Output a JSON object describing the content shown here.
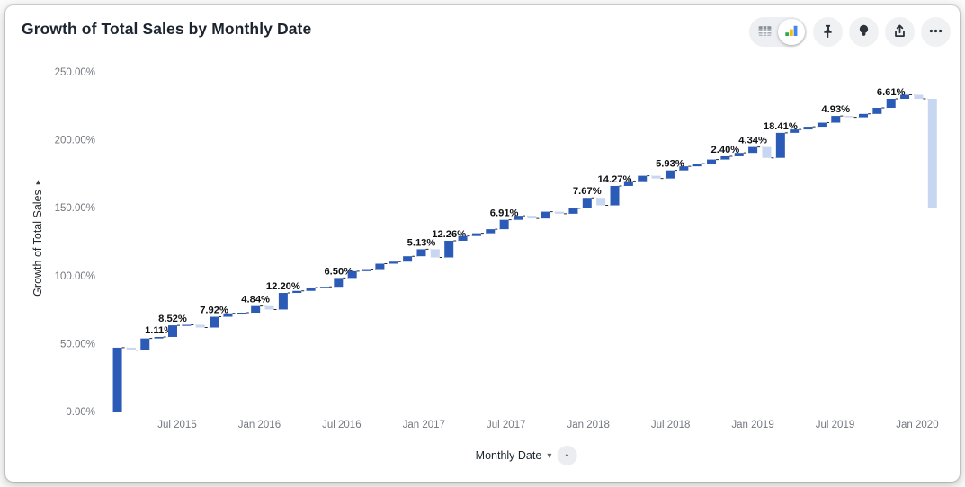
{
  "header": {
    "title": "Growth of Total Sales by Monthly Date"
  },
  "toolbar": {
    "view_toggle": {
      "options": [
        {
          "name": "table-view",
          "icon": "table-grid-icon",
          "selected": false
        },
        {
          "name": "chart-view",
          "icon": "mini-bar-chart-icon",
          "selected": true
        }
      ]
    },
    "buttons": [
      {
        "name": "pin",
        "icon": "pushpin-icon"
      },
      {
        "name": "insights",
        "icon": "lightbulb-icon"
      },
      {
        "name": "export",
        "icon": "share-up-arrow-icon"
      },
      {
        "name": "more",
        "icon": "ellipsis-icon"
      }
    ]
  },
  "chart_data": {
    "type": "waterfall",
    "title": "Growth of Total Sales by Monthly Date",
    "value_format": "0.00%",
    "grid": false,
    "colors": {
      "increase": "#2b5bb7",
      "decrease": "#c7d7f1",
      "connector": "#26282b",
      "tick_text": "#74787e",
      "label_text": "#0e1013"
    },
    "y_axis": {
      "label": "Growth of Total Sales",
      "sort_icon": "▸",
      "range": [
        0,
        250
      ],
      "ticks": [
        {
          "value": 0,
          "label": "0.00%"
        },
        {
          "value": 50,
          "label": "50.00%"
        },
        {
          "value": 100,
          "label": "100.00%"
        },
        {
          "value": 150,
          "label": "150.00%"
        },
        {
          "value": 200,
          "label": "200.00%"
        },
        {
          "value": 250,
          "label": "250.00%"
        }
      ]
    },
    "x_axis": {
      "label": "Monthly Date",
      "dropdown_icon": "▾",
      "sort_icon": "↑",
      "ticks": [
        "Jul 2015",
        "Jan 2016",
        "Jul 2016",
        "Jan 2017",
        "Jul 2017",
        "Jan 2018",
        "Jul 2018",
        "Jan 2019",
        "Jul 2019",
        "Jan 2020"
      ]
    },
    "bars": [
      {
        "month": "Mar 2015",
        "delta": 47.0
      },
      {
        "month": "Apr 2015",
        "delta": -1.8
      },
      {
        "month": "May 2015",
        "delta": 8.6
      },
      {
        "month": "Jun 2015",
        "delta": 1.11,
        "label": "1.11%"
      },
      {
        "month": "Jul 2015",
        "delta": 8.52,
        "label": "8.52%"
      },
      {
        "month": "Aug 2015",
        "delta": 0.4
      },
      {
        "month": "Sep 2015",
        "delta": -2.0
      },
      {
        "month": "Oct 2015",
        "delta": 7.92,
        "label": "7.92%"
      },
      {
        "month": "Nov 2015",
        "delta": 2.5
      },
      {
        "month": "Dec 2015",
        "delta": 0.5
      },
      {
        "month": "Jan 2016",
        "delta": 4.84,
        "label": "4.84%"
      },
      {
        "month": "Feb 2016",
        "delta": -2.5
      },
      {
        "month": "Mar 2016",
        "delta": 12.2,
        "label": "12.20%"
      },
      {
        "month": "Apr 2016",
        "delta": 1.5
      },
      {
        "month": "May 2016",
        "delta": 2.5
      },
      {
        "month": "Jun 2016",
        "delta": 0.5
      },
      {
        "month": "Jul 2016",
        "delta": 6.5,
        "label": "6.50%"
      },
      {
        "month": "Aug 2016",
        "delta": 5.0
      },
      {
        "month": "Sep 2016",
        "delta": 1.5
      },
      {
        "month": "Oct 2016",
        "delta": 4.0
      },
      {
        "month": "Nov 2016",
        "delta": 1.5
      },
      {
        "month": "Dec 2016",
        "delta": 4.0
      },
      {
        "month": "Jan 2017",
        "delta": 5.13,
        "label": "5.13%"
      },
      {
        "month": "Feb 2017",
        "delta": -6.0
      },
      {
        "month": "Mar 2017",
        "delta": 12.26,
        "label": "12.26%"
      },
      {
        "month": "Apr 2017",
        "delta": 3.5
      },
      {
        "month": "May 2017",
        "delta": 2.0
      },
      {
        "month": "Jun 2017",
        "delta": 3.0
      },
      {
        "month": "Jul 2017",
        "delta": 6.91,
        "label": "6.91%"
      },
      {
        "month": "Aug 2017",
        "delta": 3.0
      },
      {
        "month": "Sep 2017",
        "delta": -2.0
      },
      {
        "month": "Oct 2017",
        "delta": 5.0
      },
      {
        "month": "Nov 2017",
        "delta": -1.5
      },
      {
        "month": "Dec 2017",
        "delta": 4.0
      },
      {
        "month": "Jan 2018",
        "delta": 7.67,
        "label": "7.67%"
      },
      {
        "month": "Feb 2018",
        "delta": -5.5
      },
      {
        "month": "Mar 2018",
        "delta": 14.27,
        "label": "14.27%"
      },
      {
        "month": "Apr 2018",
        "delta": 3.5
      },
      {
        "month": "May 2018",
        "delta": 4.0
      },
      {
        "month": "Jun 2018",
        "delta": -2.0
      },
      {
        "month": "Jul 2018",
        "delta": 5.93,
        "label": "5.93%"
      },
      {
        "month": "Aug 2018",
        "delta": 3.0
      },
      {
        "month": "Sep 2018",
        "delta": 2.0
      },
      {
        "month": "Oct 2018",
        "delta": 3.0
      },
      {
        "month": "Nov 2018",
        "delta": 2.4,
        "label": "2.40%"
      },
      {
        "month": "Dec 2018",
        "delta": 2.5
      },
      {
        "month": "Jan 2019",
        "delta": 4.34,
        "label": "4.34%"
      },
      {
        "month": "Feb 2019",
        "delta": -8.0
      },
      {
        "month": "Mar 2019",
        "delta": 18.41,
        "label": "18.41%"
      },
      {
        "month": "Apr 2019",
        "delta": 2.5
      },
      {
        "month": "May 2019",
        "delta": 2.0
      },
      {
        "month": "Jun 2019",
        "delta": 3.0
      },
      {
        "month": "Jul 2019",
        "delta": 4.93,
        "label": "4.93%"
      },
      {
        "month": "Aug 2019",
        "delta": -1.0
      },
      {
        "month": "Sep 2019",
        "delta": 2.5
      },
      {
        "month": "Oct 2019",
        "delta": 4.5
      },
      {
        "month": "Nov 2019",
        "delta": 6.61,
        "label": "6.61%"
      },
      {
        "month": "Dec 2019",
        "delta": 3.0
      },
      {
        "month": "Jan 2020",
        "delta": -3.0
      },
      {
        "month": "Feb 2020",
        "delta": -80.5
      }
    ]
  }
}
